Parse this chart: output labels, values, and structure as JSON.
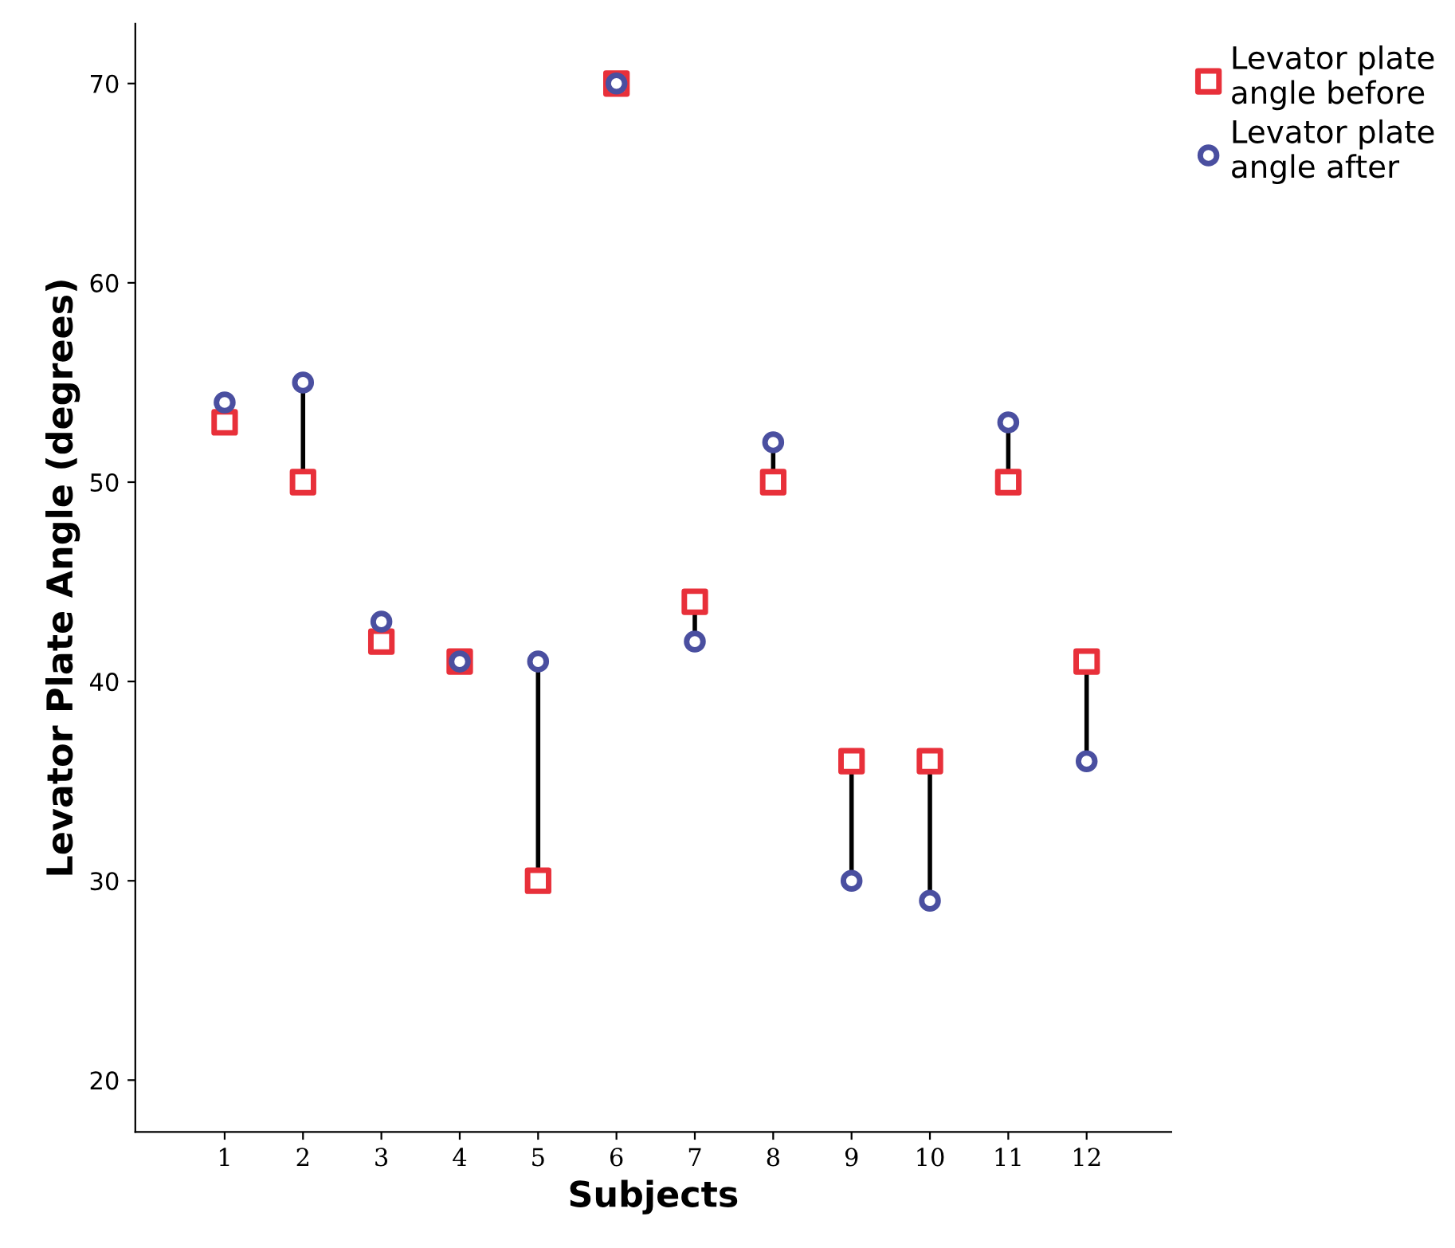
{
  "chart_data": {
    "type": "scatter",
    "xlabel": "Subjects",
    "ylabel": "Levator Plate Angle (degrees)",
    "x": [
      1,
      2,
      3,
      4,
      5,
      6,
      7,
      8,
      9,
      10,
      11,
      12
    ],
    "xlim": [
      -0.14,
      13.08
    ],
    "xticks": [
      1,
      2,
      3,
      4,
      5,
      6,
      7,
      8,
      9,
      10,
      11,
      12
    ],
    "ylim": [
      17.4,
      73
    ],
    "yticks": [
      20,
      30,
      40,
      50,
      60,
      70
    ],
    "grid": false,
    "legend": "top right",
    "series": [
      {
        "name": "Levator plate\nangle before",
        "color": "#e8303a",
        "marker": "square",
        "values": [
          53,
          50,
          42,
          41,
          30,
          70,
          44,
          50,
          36,
          36,
          50,
          41
        ]
      },
      {
        "name": "Levator plate\nangle after",
        "color": "#4a4fa0",
        "marker": "circle",
        "values": [
          54,
          55,
          43,
          41,
          41,
          70,
          42,
          52,
          30,
          29,
          53,
          36
        ]
      }
    ]
  }
}
